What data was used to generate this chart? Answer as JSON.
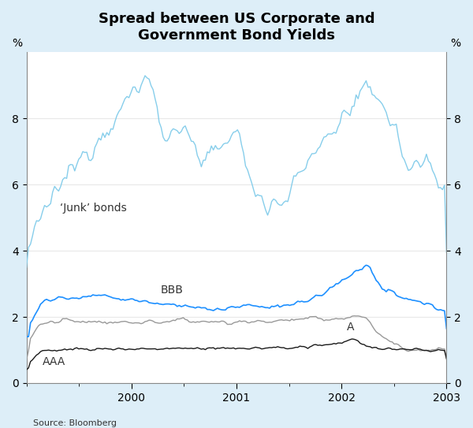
{
  "title": "Spread between US Corporate and\nGovernment Bond Yields",
  "background_color": "#ddeef8",
  "plot_bg_color": "#ffffff",
  "ylabel_left": "%",
  "ylabel_right": "%",
  "source": "Source: Bloomberg",
  "ylim": [
    0,
    10
  ],
  "yticks": [
    0,
    2,
    4,
    6,
    8
  ],
  "junk_color": "#87ceeb",
  "bbb_color": "#1e90ff",
  "a_color": "#999999",
  "aaa_color": "#1a1a1a",
  "grid_color": "#e8e8e8",
  "title_fontsize": 13,
  "axis_fontsize": 10,
  "label_fontsize": 10,
  "tick_label_fontsize": 10
}
